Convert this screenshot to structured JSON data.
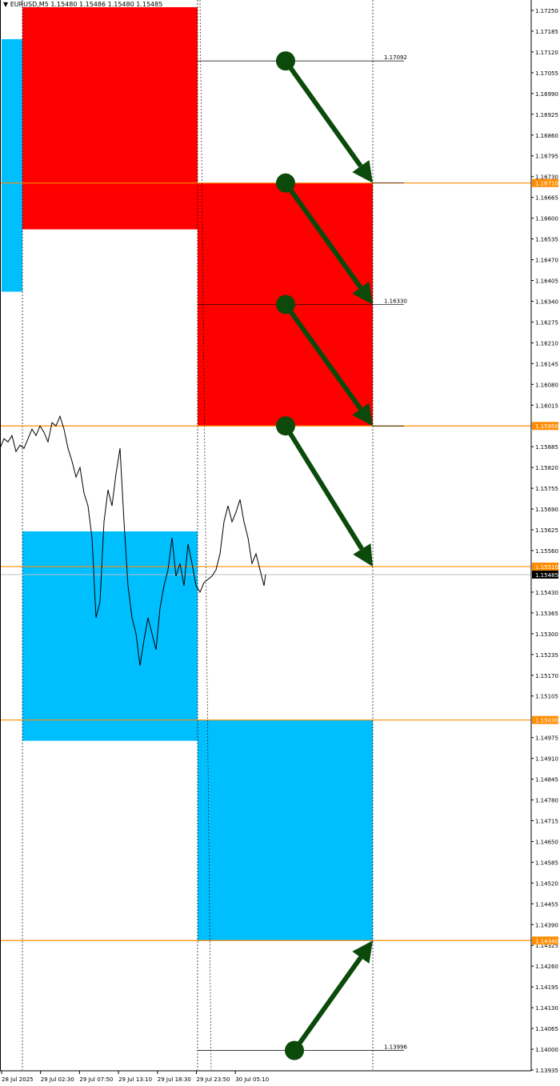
{
  "header": {
    "symbol": "EURUSD,M5",
    "ohlc": "1.15480 1.15486 1.15480 1.15485",
    "menu_icon": "triangle-down-icon"
  },
  "chart_data": {
    "type": "line",
    "symbol": "EURUSD",
    "timeframe": "M5",
    "ylim": [
      1.13935,
      1.1725
    ],
    "y_ticks": [
      "1.17250",
      "1.17185",
      "1.17120",
      "1.17055",
      "1.16990",
      "1.16925",
      "1.16860",
      "1.16795",
      "1.16730",
      "1.16665",
      "1.16600",
      "1.16535",
      "1.16470",
      "1.16405",
      "1.16340",
      "1.16275",
      "1.16210",
      "1.16145",
      "1.16080",
      "1.16015",
      "1.15885",
      "1.15820",
      "1.15755",
      "1.15690",
      "1.15625",
      "1.15560",
      "1.15430",
      "1.15365",
      "1.15300",
      "1.15235",
      "1.15170",
      "1.15105",
      "1.14975",
      "1.14910",
      "1.14845",
      "1.14780",
      "1.14715",
      "1.14650",
      "1.14585",
      "1.14520",
      "1.14455",
      "1.14390",
      "1.14325",
      "1.14260",
      "1.14195",
      "1.14130",
      "1.14065",
      "1.14000",
      "1.13935"
    ],
    "x_ticks": [
      "28 Jul 2025",
      "29 Jul 02:30",
      "29 Jul 07:50",
      "29 Jul 13:10",
      "29 Jul 18:30",
      "29 Jul 23:50",
      "30 Jul 05:10"
    ],
    "price_series": [
      1.1588,
      1.1591,
      1.159,
      1.1592,
      1.1587,
      1.1589,
      1.1588,
      1.1591,
      1.1594,
      1.1592,
      1.1595,
      1.1593,
      1.159,
      1.1596,
      1.1595,
      1.1598,
      1.1594,
      1.1588,
      1.1584,
      1.1579,
      1.1582,
      1.1574,
      1.157,
      1.156,
      1.1535,
      1.154,
      1.1565,
      1.1575,
      1.157,
      1.158,
      1.1588,
      1.1565,
      1.1545,
      1.1535,
      1.153,
      1.152,
      1.1528,
      1.1535,
      1.153,
      1.1525,
      1.1538,
      1.1545,
      1.155,
      1.156,
      1.1548,
      1.1552,
      1.1545,
      1.1558,
      1.1552,
      1.1545,
      1.1543,
      1.1546,
      1.1547,
      1.1548,
      1.155,
      1.1555,
      1.1565,
      1.157,
      1.1565,
      1.1568,
      1.1572,
      1.1565,
      1.156,
      1.1552,
      1.1555,
      1.155,
      1.1545,
      1.15485
    ],
    "current_price": "1.15485",
    "level_lines": [
      {
        "price": 1.1671,
        "label": "1.16710"
      },
      {
        "price": 1.1595,
        "label": "1.15950"
      },
      {
        "price": 1.1551,
        "label": "1.15510"
      },
      {
        "price": 1.1503,
        "label": "1.15030"
      },
      {
        "price": 1.1434,
        "label": "1.14340"
      }
    ],
    "target_lines": [
      {
        "price": 1.17092,
        "label": "1.17092"
      },
      {
        "price": 1.1633,
        "label": "1.16330"
      },
      {
        "price": 1.13996,
        "label": "1.13996"
      }
    ],
    "zones": [
      {
        "color": "#ff0000",
        "top": 1.1726,
        "bottom": 1.16565,
        "period": 1
      },
      {
        "color": "#ff0000",
        "top": 1.1671,
        "bottom": 1.1595,
        "period": 2
      },
      {
        "color": "#00bfff",
        "top": 1.1562,
        "bottom": 1.14965,
        "period": 1
      },
      {
        "color": "#00bfff",
        "top": 1.1503,
        "bottom": 1.1434,
        "period": 2
      },
      {
        "color": "#00bfff",
        "top": 1.1716,
        "bottom": 1.1637,
        "period": 0
      }
    ],
    "arrows": [
      {
        "from": 1.17092,
        "to": 1.1671
      },
      {
        "from": 1.1671,
        "to": 1.1633
      },
      {
        "from": 1.1633,
        "to": 1.1595
      },
      {
        "from": 1.1595,
        "to": 1.1551
      },
      {
        "from": 1.13996,
        "to": 1.1434
      }
    ],
    "colors": {
      "level": "#ff8c00",
      "arrow": "#0b4a0b",
      "red_zone": "#ff0000",
      "blue_zone": "#00bfff"
    }
  }
}
